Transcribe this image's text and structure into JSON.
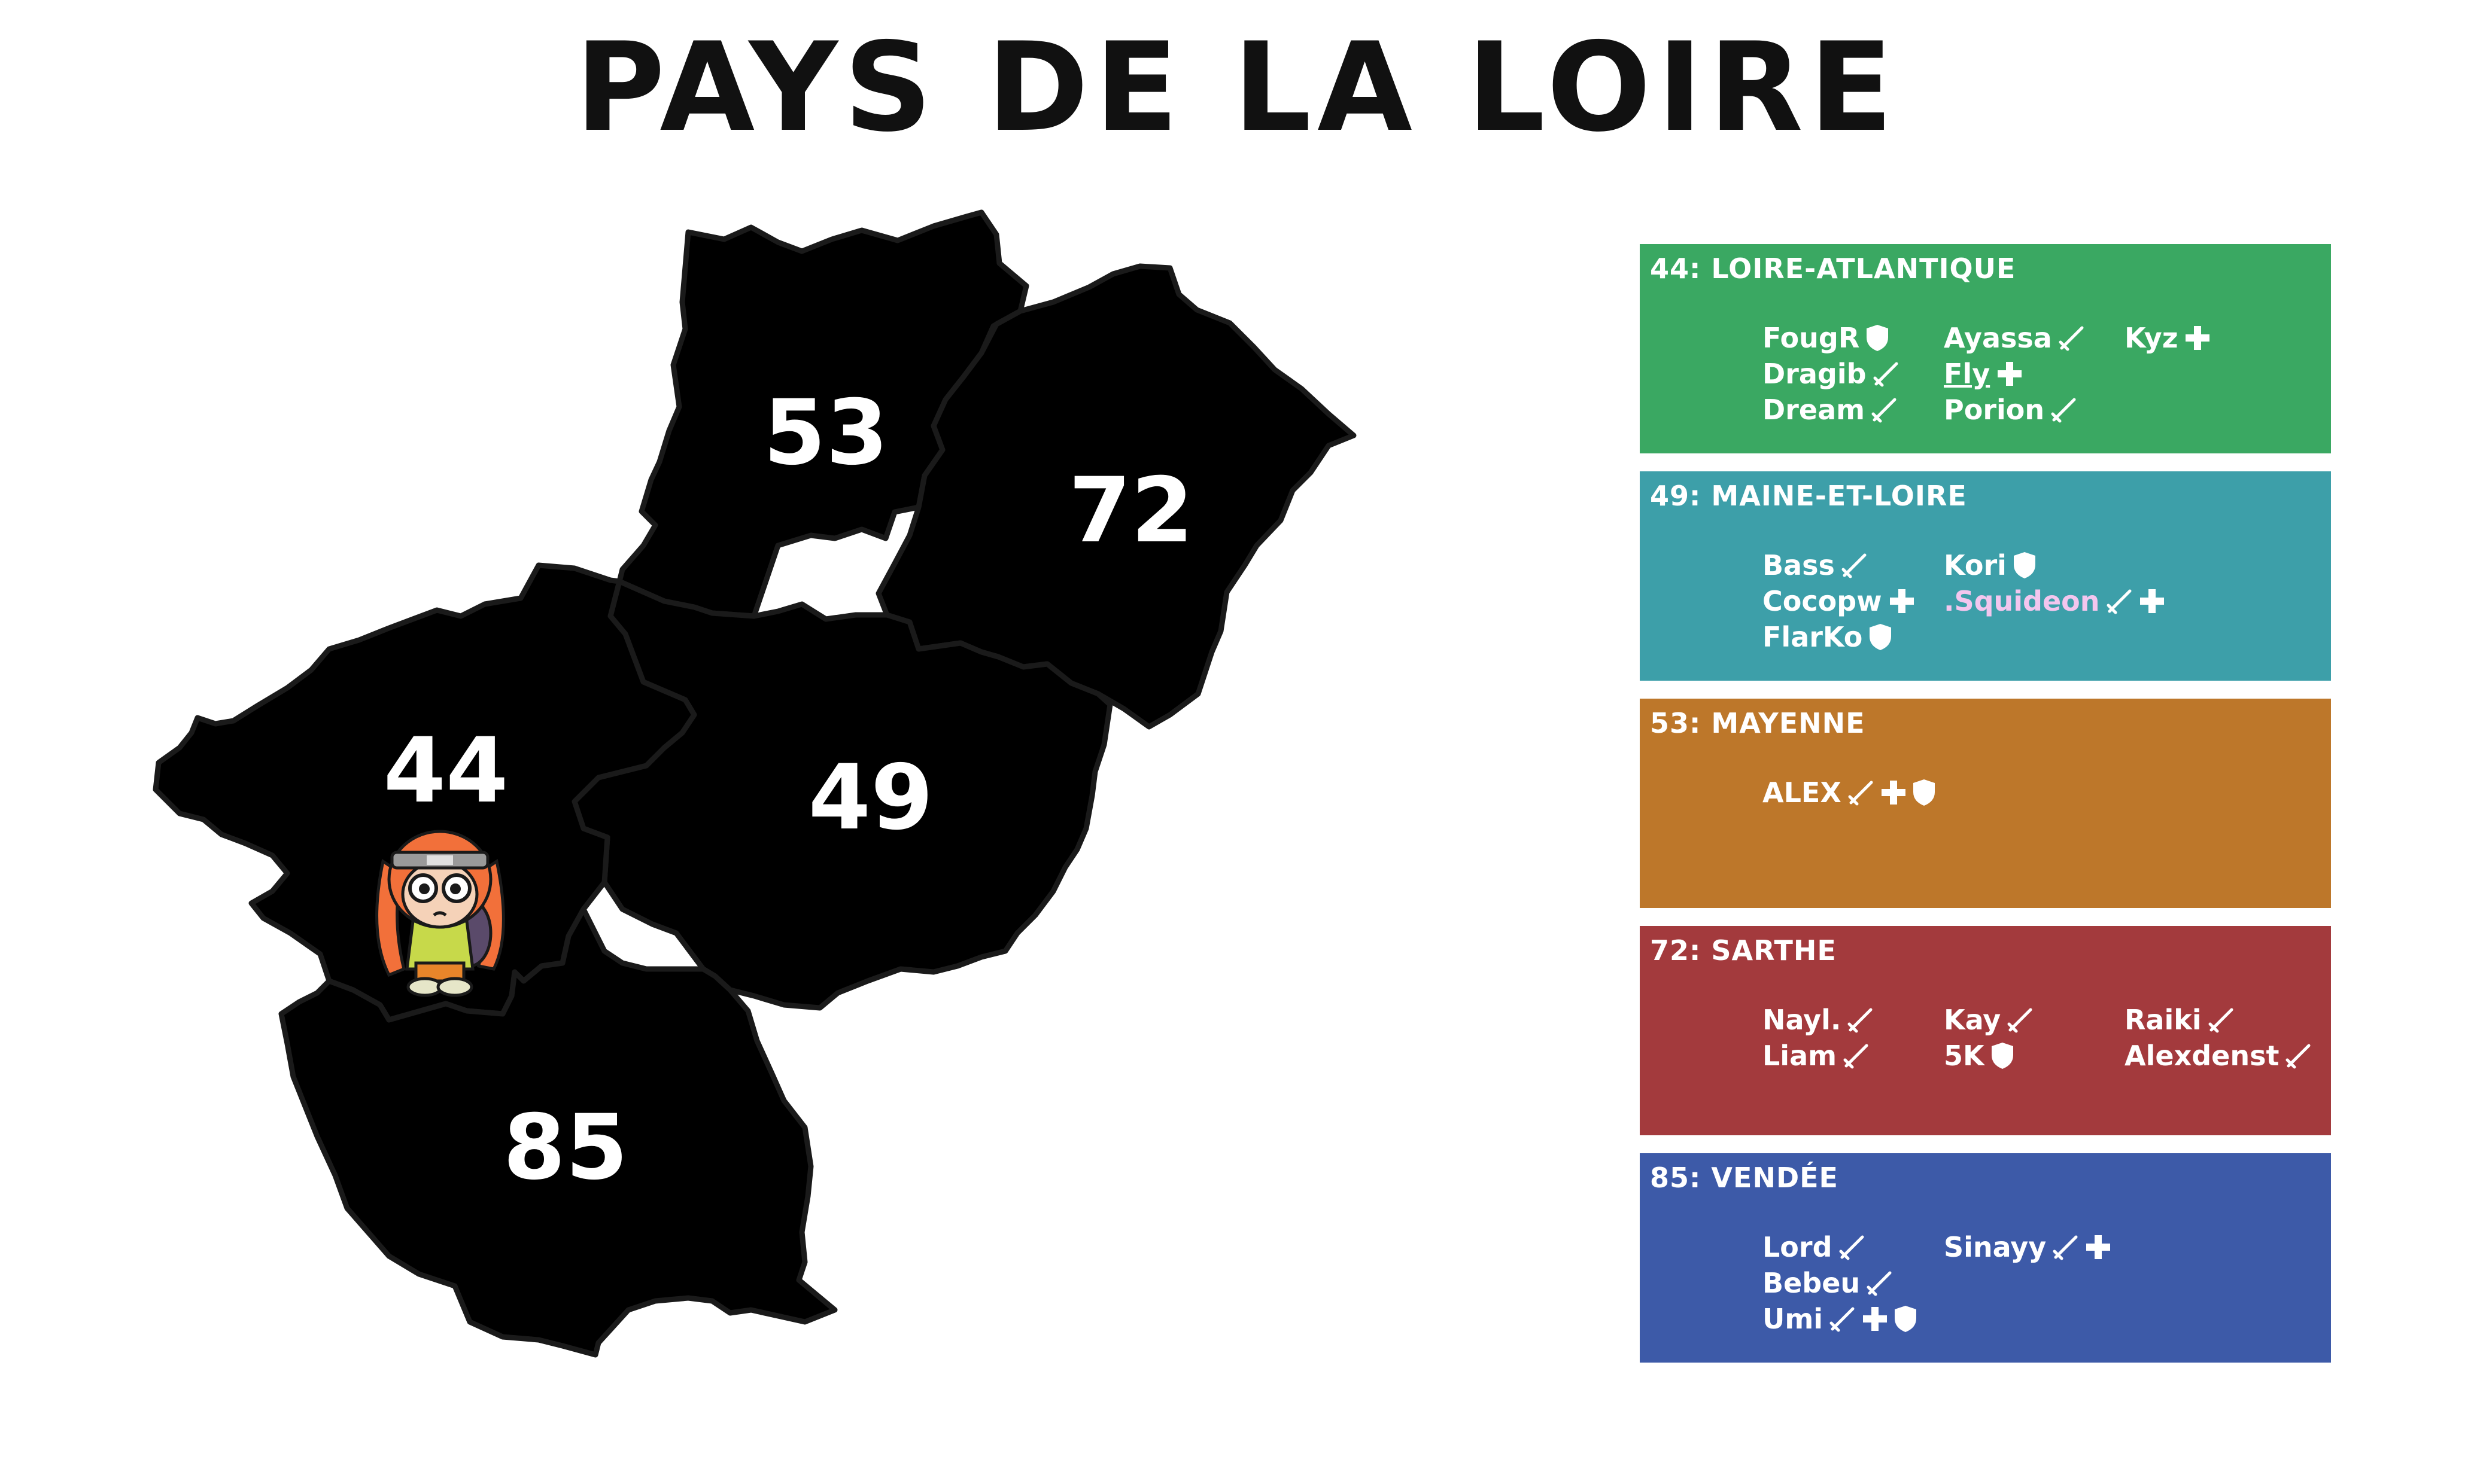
{
  "title": "PAYS DE LA LOIRE",
  "colors": {
    "loire_atlantique": "#3aa862",
    "maine_et_loire": "#3d9fa9",
    "mayenne": "#bd772a",
    "sarthe": "#a33a3d",
    "vendee": "#3d5aa8",
    "outline": "#1a1a1a"
  },
  "map": {
    "regions": [
      {
        "id": "44",
        "label": "44",
        "color": "#3aa862"
      },
      {
        "id": "49",
        "label": "49",
        "color": "#3d9fa9"
      },
      {
        "id": "53",
        "label": "53",
        "color": "#bd772a"
      },
      {
        "id": "72",
        "label": "72",
        "color": "#a33a3d"
      },
      {
        "id": "85",
        "label": "85",
        "color": "#3d5aa8"
      }
    ],
    "mascot": "inkling-character-icon"
  },
  "panels": [
    {
      "id": "44",
      "title": "44: LOIRE-ATLANTIQUE",
      "color": "#3aa862",
      "players": [
        {
          "name": "FougR",
          "icons": [
            "shield"
          ],
          "col": 0,
          "row": 0
        },
        {
          "name": "Dragib",
          "icons": [
            "sword"
          ],
          "col": 0,
          "row": 1
        },
        {
          "name": "Dream",
          "icons": [
            "sword"
          ],
          "col": 0,
          "row": 2
        },
        {
          "name": "Ayassa",
          "icons": [
            "sword"
          ],
          "col": 1,
          "row": 0
        },
        {
          "name": "Fly",
          "icons": [
            "plus"
          ],
          "col": 1,
          "row": 1,
          "underline": true
        },
        {
          "name": "Porion",
          "icons": [
            "sword"
          ],
          "col": 1,
          "row": 2
        },
        {
          "name": "Kyz",
          "icons": [
            "plus"
          ],
          "col": 2,
          "row": 0
        }
      ]
    },
    {
      "id": "49",
      "title": "49: MAINE-ET-LOIRE",
      "color": "#3d9fa9",
      "players": [
        {
          "name": "Bass",
          "icons": [
            "sword"
          ],
          "col": 0,
          "row": 0
        },
        {
          "name": "Cocopw",
          "icons": [
            "plus"
          ],
          "col": 0,
          "row": 1
        },
        {
          "name": "FlarKo",
          "icons": [
            "shield"
          ],
          "col": 0,
          "row": 2
        },
        {
          "name": "Kori",
          "icons": [
            "shield"
          ],
          "col": 1,
          "row": 0
        },
        {
          "name": ".Squideon",
          "icons": [
            "sword",
            "plus"
          ],
          "col": 1,
          "row": 1,
          "name_color": "#f3c6ee"
        }
      ]
    },
    {
      "id": "53",
      "title": "53: MAYENNE",
      "color": "#bd772a",
      "players": [
        {
          "name": "ALEX",
          "icons": [
            "sword",
            "plus",
            "shield"
          ],
          "col": 0,
          "row": 0
        }
      ]
    },
    {
      "id": "72",
      "title": "72: SARTHE",
      "color": "#a33a3d",
      "players": [
        {
          "name": "Nayl.",
          "icons": [
            "sword"
          ],
          "col": 0,
          "row": 0
        },
        {
          "name": "Liam",
          "icons": [
            "sword"
          ],
          "col": 0,
          "row": 1
        },
        {
          "name": "Kay",
          "icons": [
            "sword"
          ],
          "col": 1,
          "row": 0
        },
        {
          "name": "5K",
          "icons": [
            "shield"
          ],
          "col": 1,
          "row": 1
        },
        {
          "name": "Raiki",
          "icons": [
            "sword"
          ],
          "col": 2,
          "row": 0
        },
        {
          "name": "Alexdenst",
          "icons": [
            "sword"
          ],
          "col": 2,
          "row": 1
        }
      ]
    },
    {
      "id": "85",
      "title": "85: VENDÉE",
      "color": "#3d5aa8",
      "players": [
        {
          "name": "Lord",
          "icons": [
            "sword"
          ],
          "col": 0,
          "row": 0
        },
        {
          "name": "Bebeu",
          "icons": [
            "sword"
          ],
          "col": 0,
          "row": 1
        },
        {
          "name": "Umi",
          "icons": [
            "sword",
            "plus",
            "shield"
          ],
          "col": 0,
          "row": 2
        },
        {
          "name": "Sinayy",
          "icons": [
            "sword",
            "plus"
          ],
          "col": 1,
          "row": 0
        }
      ]
    }
  ]
}
